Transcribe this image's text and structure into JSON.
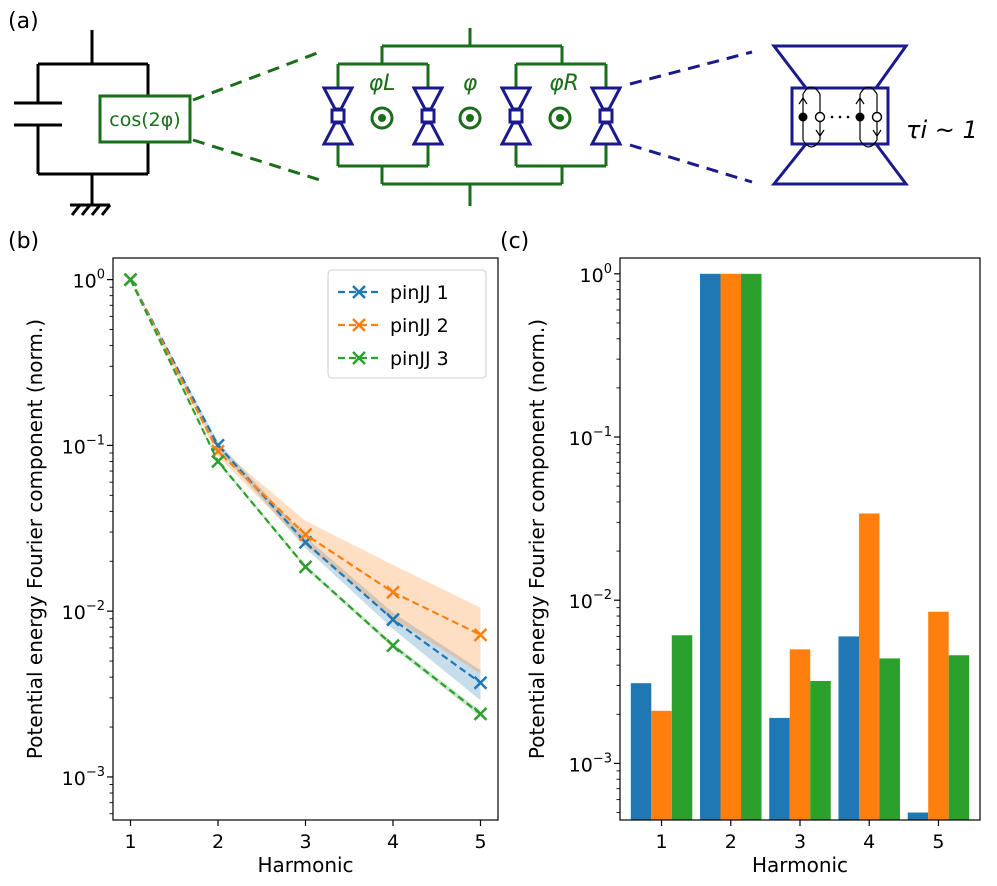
{
  "panel_labels": {
    "a": "(a)",
    "b": "(b)",
    "c": "(c)"
  },
  "circuit": {
    "element_label": "cos(2φ)",
    "phi_left": "φL",
    "phi_center": "φ",
    "phi_right": "φR",
    "tau_label": "τi ~ 1"
  },
  "colors": {
    "series1": "#1f77b4",
    "series2": "#ff7f0e",
    "series3": "#2ca02c",
    "circuit_green": "#1a6e1a",
    "circuit_blue": "#1a1a8c"
  },
  "chart_data": [
    {
      "type": "line",
      "panel": "b",
      "xlabel": "Harmonic",
      "ylabel": "Potential energy Fourier component (norm.)",
      "yscale": "log",
      "ylim": [
        0.00055,
        1.35
      ],
      "xlim": [
        0.8,
        5.2
      ],
      "x": [
        1,
        2,
        3,
        4,
        5
      ],
      "x_ticks": [
        "1",
        "2",
        "3",
        "4",
        "5"
      ],
      "y_ticks": [
        {
          "value": 1,
          "base": "10",
          "exp": "0"
        },
        {
          "value": 0.1,
          "base": "10",
          "exp": "−1"
        },
        {
          "value": 0.01,
          "base": "10",
          "exp": "−2"
        },
        {
          "value": 0.001,
          "base": "10",
          "exp": "−3"
        }
      ],
      "legend_position": "top-right",
      "series": [
        {
          "name": "pinJJ 1",
          "values": [
            1,
            0.1,
            0.026,
            0.0089,
            0.0037
          ],
          "band_low": [
            1,
            0.095,
            0.024,
            0.0078,
            0.0029
          ],
          "band_high": [
            1,
            0.105,
            0.028,
            0.0098,
            0.0044
          ]
        },
        {
          "name": "pinJJ 2",
          "values": [
            1,
            0.092,
            0.029,
            0.013,
            0.0072
          ],
          "band_low": [
            1,
            0.086,
            0.025,
            0.009,
            0.0042
          ],
          "band_high": [
            1,
            0.098,
            0.035,
            0.019,
            0.0105
          ]
        },
        {
          "name": "pinJJ 3",
          "values": [
            1,
            0.08,
            0.0185,
            0.0062,
            0.0024
          ],
          "band_low": [
            1,
            0.078,
            0.018,
            0.006,
            0.0023
          ],
          "band_high": [
            1,
            0.082,
            0.019,
            0.0064,
            0.0025
          ]
        }
      ]
    },
    {
      "type": "bar",
      "panel": "c",
      "xlabel": "Harmonic",
      "ylabel": "Potential energy Fourier component (norm.)",
      "yscale": "log",
      "ylim": [
        0.00045,
        1.25
      ],
      "categories": [
        "1",
        "2",
        "3",
        "4",
        "5"
      ],
      "y_ticks": [
        {
          "value": 1,
          "base": "10",
          "exp": "0"
        },
        {
          "value": 0.1,
          "base": "10",
          "exp": "−1"
        },
        {
          "value": 0.01,
          "base": "10",
          "exp": "−2"
        },
        {
          "value": 0.001,
          "base": "10",
          "exp": "−3"
        }
      ],
      "series": [
        {
          "name": "pinJJ 1",
          "values": [
            0.0031,
            1.0,
            0.0019,
            0.006,
            0.0005
          ]
        },
        {
          "name": "pinJJ 2",
          "values": [
            0.0021,
            1.0,
            0.005,
            0.034,
            0.0085
          ]
        },
        {
          "name": "pinJJ 3",
          "values": [
            0.0061,
            1.0,
            0.0032,
            0.0044,
            0.0046
          ]
        }
      ]
    }
  ]
}
